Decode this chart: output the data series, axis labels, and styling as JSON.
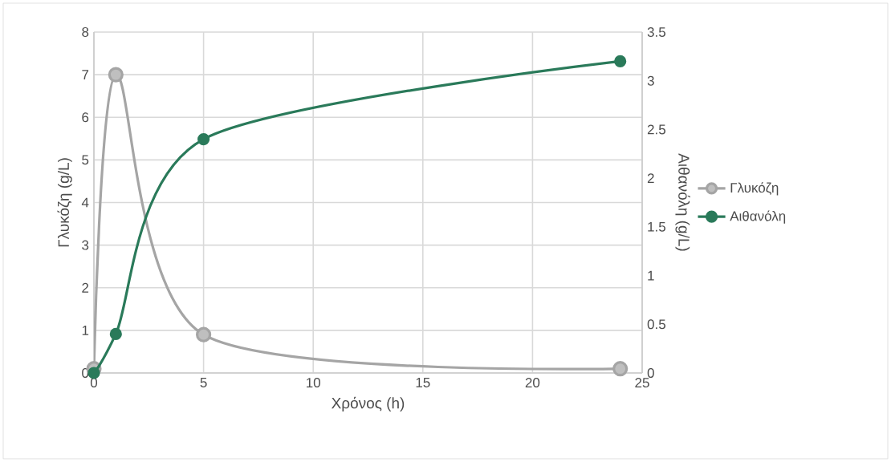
{
  "chart_data": {
    "type": "line",
    "xlabel": "Χρόνος (h)",
    "ylabel": "Γλυκόζη (g/L)",
    "y2label": "Αιθανόλη (g/L)",
    "x": [
      0,
      1,
      5,
      24
    ],
    "series": [
      {
        "name": "Γλυκόζη",
        "color": "#a5a5a5",
        "values": [
          0.1,
          7,
          0.9,
          0.1
        ]
      },
      {
        "name": "Αιθανόλη",
        "color": "#2a7a5a",
        "values": [
          0,
          0.4,
          2.4,
          3.2
        ],
        "axis": "y2"
      }
    ],
    "xlim": [
      0,
      25
    ],
    "xticks": [
      0,
      5,
      10,
      15,
      20,
      25
    ],
    "ylim": [
      0,
      8
    ],
    "yticks": [
      0,
      1,
      2,
      3,
      4,
      5,
      6,
      7,
      8
    ],
    "y2lim": [
      0,
      3.5
    ],
    "y2ticks": [
      0,
      {
        "value": 0.5,
        "label": "0.5"
      },
      1,
      {
        "value": 1.5,
        "label": "1.5"
      },
      2,
      {
        "value": 2.5,
        "label": "2.5"
      },
      3,
      {
        "value": 3.5,
        "label": "3.5"
      }
    ],
    "grid": true,
    "legend": "right",
    "marker": "circle",
    "line_style": "solid"
  }
}
